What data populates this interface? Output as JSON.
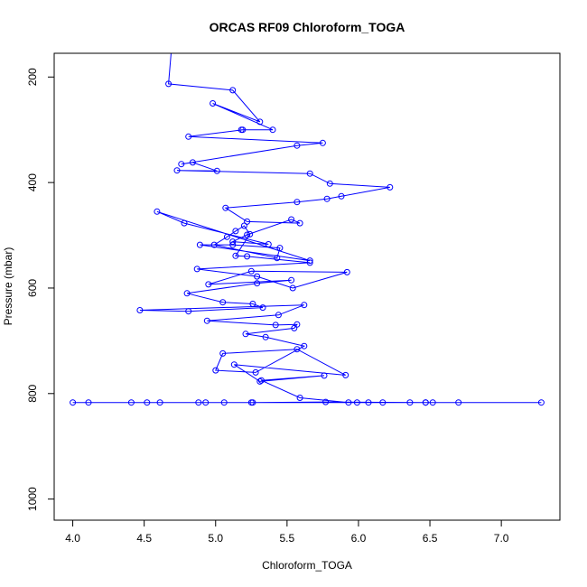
{
  "chart_data": {
    "type": "line",
    "title": "ORCAS RF09 Chloroform_TOGA",
    "xlabel": "Chloroform_TOGA",
    "ylabel": "Pressure (mbar)",
    "xlim": [
      3.87,
      7.41
    ],
    "ylim": [
      1040,
      155
    ],
    "x_ticks": [
      4.0,
      4.5,
      5.0,
      5.5,
      6.0,
      6.5,
      7.0
    ],
    "x_tick_labels": [
      "4.0",
      "4.5",
      "5.0",
      "5.5",
      "6.0",
      "6.5",
      "7.0"
    ],
    "y_ticks": [
      200,
      400,
      600,
      800,
      1000
    ],
    "y_tick_labels": [
      "200",
      "400",
      "600",
      "800",
      "1000"
    ],
    "series": [
      {
        "name": "Chloroform_TOGA",
        "color": "#0000ff",
        "x": [
          4.69,
          4.67,
          5.12,
          5.31,
          4.98,
          5.4,
          5.18,
          5.19,
          4.81,
          5.75,
          5.57,
          4.76,
          4.84,
          5.01,
          4.73,
          5.66,
          5.8,
          6.22,
          5.88,
          5.78,
          5.57,
          5.07,
          5.22,
          5.59,
          5.53,
          5.22,
          5.12,
          5.37,
          4.78,
          4.59,
          5.66,
          4.89,
          5.12,
          5.45,
          5.43,
          4.99,
          5.08,
          5.14,
          5.2,
          5.24,
          5.14,
          5.22,
          5.66,
          4.87,
          5.29,
          5.54,
          5.92,
          5.25,
          4.95,
          5.53,
          5.29,
          4.8,
          5.05,
          5.26,
          5.33,
          4.81,
          4.47,
          5.62,
          5.44,
          4.94,
          5.42,
          5.57,
          5.55,
          5.21,
          5.35,
          5.62,
          5.28,
          5.0,
          5.05,
          5.57,
          5.91,
          5.13,
          5.31,
          5.76,
          5.32,
          5.59,
          5.93,
          5.25,
          5.26,
          5.77,
          6.47,
          4.41,
          5.06,
          5.99,
          4.93,
          6.07,
          4.61,
          4.52,
          4.11,
          4.0,
          4.88,
          6.17,
          6.36,
          6.47,
          6.52,
          6.7,
          7.28
        ],
        "y": [
          150,
          213,
          225,
          285,
          250,
          300,
          300,
          300,
          313,
          325,
          330,
          365,
          362,
          378,
          377,
          383,
          402,
          409,
          426,
          431,
          437,
          448,
          474,
          477,
          470,
          499,
          512,
          517,
          477,
          455,
          548,
          518,
          518,
          524,
          543,
          518,
          503,
          492,
          482,
          498,
          539,
          540,
          552,
          564,
          578,
          600,
          570,
          568,
          593,
          585,
          591,
          610,
          627,
          630,
          637,
          644,
          642,
          632,
          651,
          662,
          670,
          669,
          676,
          687,
          693,
          710,
          760,
          756,
          724,
          716,
          765,
          745,
          777,
          766,
          775,
          808,
          817,
          817,
          817,
          816,
          817,
          817,
          817,
          817,
          817,
          817,
          817,
          817,
          817,
          817,
          817,
          817,
          817,
          817,
          817,
          817,
          817
        ]
      }
    ]
  }
}
